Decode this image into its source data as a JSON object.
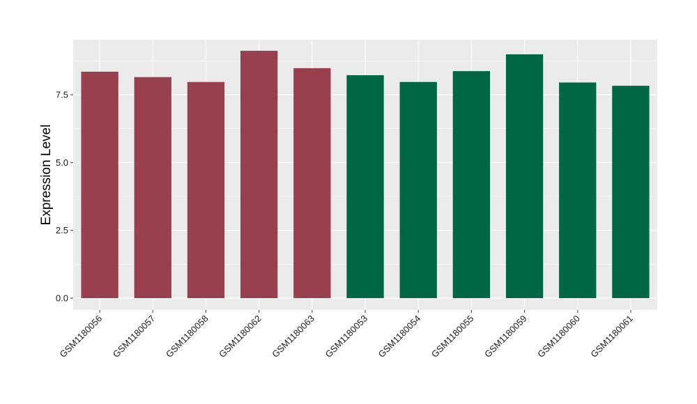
{
  "chart_data": {
    "type": "bar",
    "title": "",
    "xlabel": "",
    "ylabel": "Expression Level",
    "ylim": [
      0,
      9.5
    ],
    "yticks": [
      0.0,
      2.5,
      5.0,
      7.5
    ],
    "ytick_labels": [
      "0.0",
      "2.5",
      "5.0",
      "7.5"
    ],
    "grid": true,
    "legend": "none",
    "colors": {
      "panel_bg": "#ebebeb",
      "grid": "#ffffff",
      "group_a": "#99404f",
      "group_b": "#006645"
    },
    "categories": [
      "GSM1180056",
      "GSM1180057",
      "GSM1180058",
      "GSM1180062",
      "GSM1180063",
      "GSM1180053",
      "GSM1180054",
      "GSM1180055",
      "GSM1180059",
      "GSM1180060",
      "GSM1180061"
    ],
    "values": [
      8.35,
      8.15,
      7.97,
      9.12,
      8.48,
      8.22,
      7.97,
      8.37,
      8.99,
      7.95,
      7.83
    ],
    "bar_colors": [
      "#99404f",
      "#99404f",
      "#99404f",
      "#99404f",
      "#99404f",
      "#006645",
      "#006645",
      "#006645",
      "#006645",
      "#006645",
      "#006645"
    ]
  }
}
